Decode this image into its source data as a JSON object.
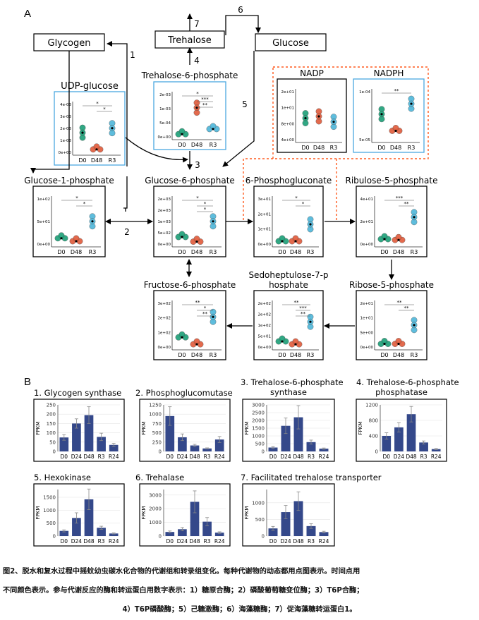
{
  "panel_a_label": "A",
  "panel_b_label": "B",
  "nodes": {
    "glycogen": "Glycogen",
    "trehalose": "Trehalose",
    "glucose": "Glucose"
  },
  "arrow_numbers": [
    "1",
    "2",
    "3",
    "4",
    "5",
    "6",
    "7"
  ],
  "dot_plots": [
    {
      "title": "UDP-glucose",
      "yticks": [
        "4e-03",
        "3e-03",
        "2e-03",
        "1e-03",
        "0e+00"
      ],
      "xticks": [
        "D0",
        "D48",
        "R3"
      ],
      "sig": [
        "*",
        "*"
      ]
    },
    {
      "title": "Trehalose-6-phosphate",
      "yticks": [
        "2e-03",
        "1e-03",
        "5e-04",
        "0e+00"
      ],
      "xticks": [
        "D0",
        "D48",
        "R3"
      ],
      "sig": [
        "*",
        "***",
        "**"
      ]
    },
    {
      "title": "NADP",
      "yticks": [
        "2e+01",
        "1e+01",
        "8e+00",
        "4e+00"
      ],
      "xticks": [
        "D0",
        "D48",
        "R3"
      ],
      "sig": []
    },
    {
      "title": "NADPH",
      "yticks": [
        "1e-04",
        "5e-05"
      ],
      "xticks": [
        "D0",
        "D48",
        "R3"
      ],
      "sig": [
        "**"
      ]
    },
    {
      "title": "Glucose-1-phosphate",
      "yticks": [
        "1e+02",
        "5e+01",
        "0e+00"
      ],
      "xticks": [
        "D0",
        "D48",
        "R3"
      ],
      "sig": [
        "*",
        "*"
      ]
    },
    {
      "title": "Glucose-6-phosphate",
      "yticks": [
        "2e+03",
        "2e+03",
        "1e+03",
        "5e+02",
        "0e+00"
      ],
      "xticks": [
        "D0",
        "D48",
        "R3"
      ],
      "sig": [
        "*",
        "*",
        "*"
      ]
    },
    {
      "title": "6-Phosphogluconate",
      "yticks": [
        "3e+01",
        "2e+01",
        "1e+01",
        "0e+00"
      ],
      "xticks": [
        "D0",
        "D48",
        "R3"
      ],
      "sig": [
        "*",
        "*"
      ]
    },
    {
      "title": "Ribulose-5-phosphate",
      "yticks": [
        "4e+01",
        "2e+01",
        "0e+00"
      ],
      "xticks": [
        "D0",
        "D48",
        "R3"
      ],
      "sig": [
        "***",
        "**"
      ]
    },
    {
      "title": "Fructose-6-phosphate",
      "yticks": [
        "3e+02",
        "2e+02",
        "1e+02",
        "0e+00"
      ],
      "xticks": [
        "D0",
        "D48",
        "R3"
      ],
      "sig": [
        "**",
        "*",
        "**"
      ]
    },
    {
      "title": "Sedoheptulose-7-phosphate",
      "yticks": [
        "2e+02",
        "2e+02",
        "1e+02",
        "5e+01",
        "0e+00"
      ],
      "xticks": [
        "D0",
        "D48",
        "R3"
      ],
      "sig": [
        "**",
        "***",
        "**"
      ]
    },
    {
      "title": "Ribose-5-phosphate",
      "yticks": [
        "2e+01",
        "1e+01",
        "5e+00",
        "0e+00"
      ],
      "xticks": [
        "D0",
        "D48",
        "R3"
      ],
      "sig": [
        "**",
        "**"
      ]
    }
  ],
  "dot_colors": {
    "D0": "#1b9e77",
    "D48": "#e05a3a",
    "R3": "#4cb6d9"
  },
  "chart_data": [
    {
      "type": "bar",
      "title": "1. Glycogen synthase",
      "ylabel": "FPKM",
      "categories": [
        "D0",
        "D24",
        "D48",
        "R3",
        "R24"
      ],
      "values": [
        75,
        150,
        195,
        78,
        35
      ],
      "errors": [
        15,
        25,
        45,
        20,
        8
      ],
      "yticks": [
        0,
        50,
        100,
        150,
        200,
        250
      ],
      "ylim": [
        0,
        250
      ]
    },
    {
      "type": "bar",
      "title": "2. Phosphoglucomutase",
      "ylabel": "FPKM",
      "categories": [
        "D0",
        "D24",
        "D48",
        "R3",
        "R24"
      ],
      "values": [
        950,
        380,
        160,
        80,
        320
      ],
      "errors": [
        250,
        90,
        30,
        15,
        80
      ],
      "yticks": [
        0,
        250,
        500,
        750,
        1000,
        1250
      ],
      "ylim": [
        0,
        1250
      ]
    },
    {
      "type": "bar",
      "title": "3. Trehalose-6-phosphate synthase",
      "ylabel": "FPKM",
      "categories": [
        "D0",
        "D24",
        "D48",
        "R3",
        "R24"
      ],
      "values": [
        250,
        1650,
        2200,
        600,
        180
      ],
      "errors": [
        60,
        500,
        750,
        130,
        40
      ],
      "yticks": [
        0,
        500,
        1000,
        1500,
        2000,
        2500,
        3000
      ],
      "ylim": [
        0,
        3000
      ]
    },
    {
      "type": "bar",
      "title": "4. Trehalose-6-phosphate phosphatase",
      "ylabel": "FPKM",
      "categories": [
        "D0",
        "D24",
        "D48",
        "R3",
        "R24"
      ],
      "values": [
        400,
        620,
        960,
        230,
        60
      ],
      "errors": [
        80,
        120,
        200,
        40,
        15
      ],
      "yticks": [
        0,
        400,
        800,
        1200
      ],
      "ylim": [
        0,
        1200
      ]
    },
    {
      "type": "bar",
      "title": "5. Hexokinase",
      "ylabel": "FPKM",
      "categories": [
        "D0",
        "D24",
        "D48",
        "R3",
        "R24"
      ],
      "values": [
        200,
        700,
        1420,
        320,
        100
      ],
      "errors": [
        40,
        200,
        400,
        60,
        20
      ],
      "yticks": [
        0,
        500,
        1000,
        1500
      ],
      "ylim": [
        0,
        1800
      ]
    },
    {
      "type": "bar",
      "title": "6. Trehalase",
      "ylabel": "FPKM",
      "categories": [
        "D0",
        "D24",
        "D48",
        "R3",
        "R24"
      ],
      "values": [
        300,
        500,
        2500,
        1050,
        250
      ],
      "errors": [
        70,
        120,
        800,
        300,
        60
      ],
      "yticks": [
        0,
        1000,
        2000,
        3000
      ],
      "ylim": [
        0,
        3400
      ]
    },
    {
      "type": "bar",
      "title": "7. Facilitated trehalose transporter",
      "ylabel": "FPKM",
      "categories": [
        "D0",
        "D24",
        "D48",
        "R3",
        "R24"
      ],
      "values": [
        230,
        720,
        1050,
        300,
        120
      ],
      "errors": [
        60,
        200,
        280,
        70,
        25
      ],
      "yticks": [
        0,
        500,
        1000
      ],
      "ylim": [
        0,
        1400
      ]
    }
  ],
  "bar_color": "#34488a",
  "caption": {
    "line1": "图2、脱水和复水过程中摇蚊幼虫碳水化合物的代谢组和转录组变化。每种代谢物的动态都用点图表示。时间点用",
    "line2": "不同颜色表示。参与代谢反应的酶和转运蛋白用数字表示：1）糖原合酶；2）磷酸葡萄糖变位酶；3）T6P合酶；",
    "line3": "4）T6P磷酸酶；5）己糖激酶；6）海藻糖酶；7）促海藻糖转运蛋白1。"
  }
}
